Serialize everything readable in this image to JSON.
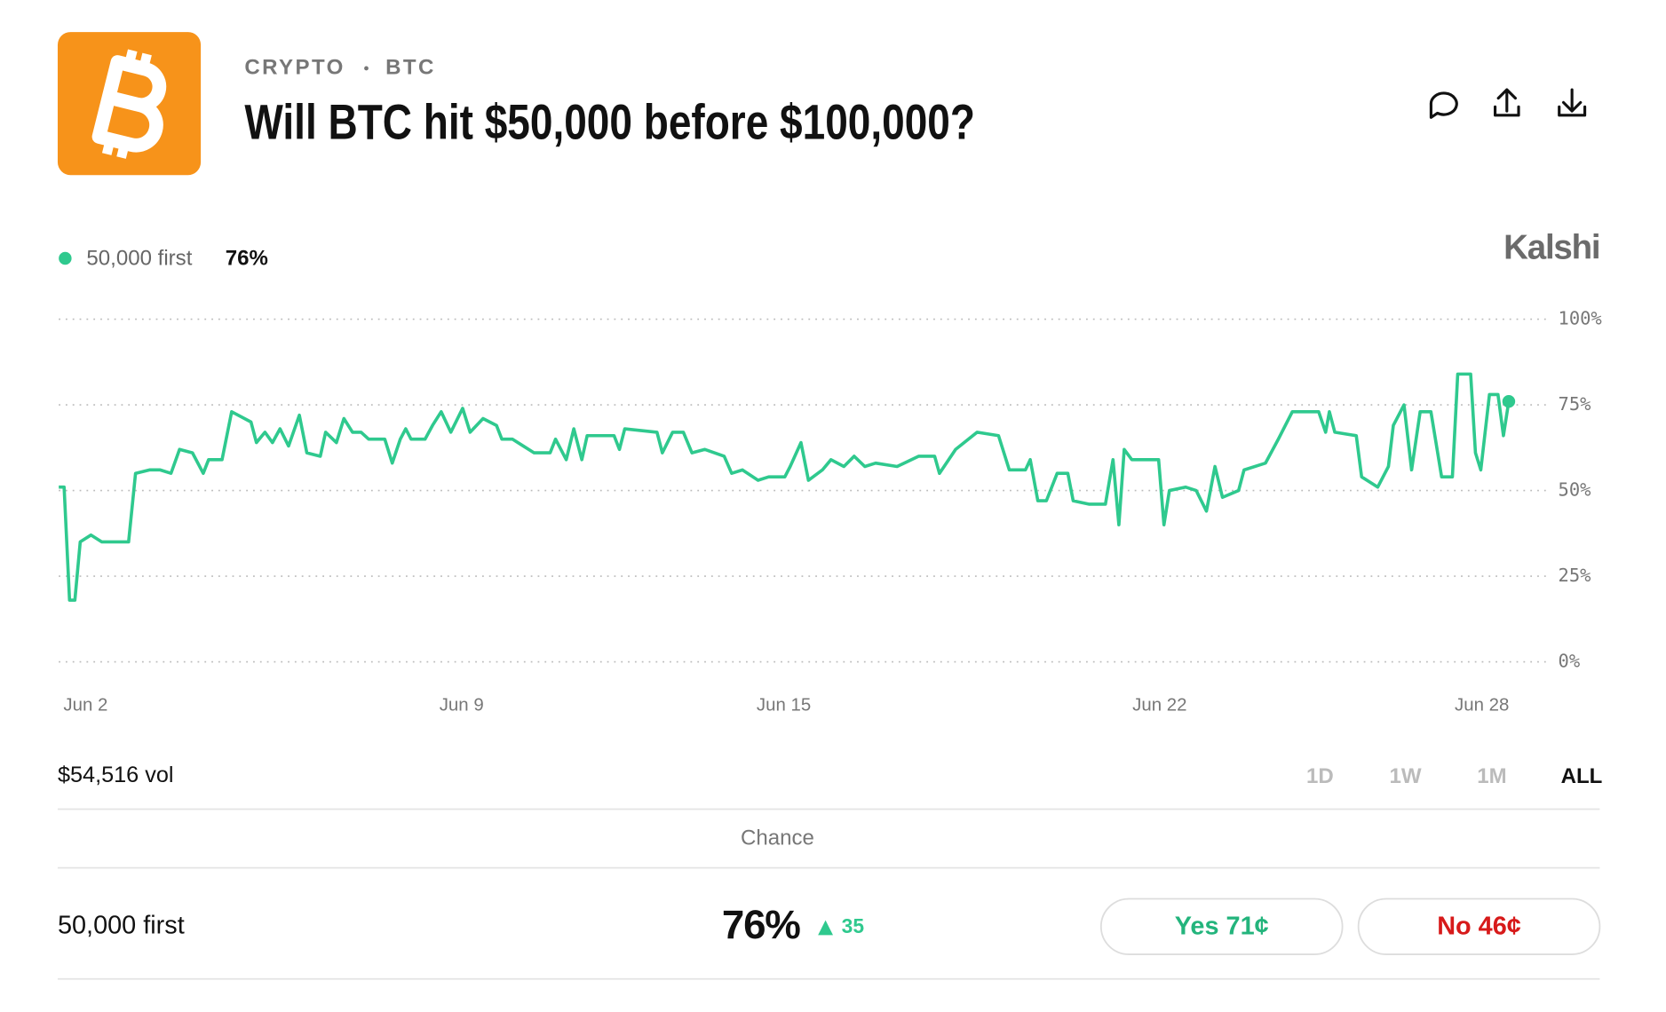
{
  "header": {
    "category": "CRYPTO",
    "ticker": "BTC",
    "title": "Will BTC hit $50,000 before $100,000?"
  },
  "brand": "Kalshi",
  "chart_data": {
    "type": "line",
    "series": [
      {
        "name": "50,000 first",
        "current": "76%",
        "color": "#2fc98e",
        "x": [
          1.5,
          1.6,
          1.7,
          1.8,
          1.9,
          2.1,
          2.3,
          2.5,
          2.8,
          2.93,
          3.19,
          3.39,
          3.59,
          3.75,
          3.99,
          4.19,
          4.29,
          4.54,
          4.72,
          5.08,
          5.18,
          5.34,
          5.48,
          5.62,
          5.78,
          5.98,
          6.12,
          6.37,
          6.47,
          6.67,
          6.81,
          6.97,
          7.13,
          7.27,
          7.57,
          7.71,
          7.86,
          7.96,
          8.06,
          8.32,
          8.46,
          8.62,
          8.8,
          9.02,
          9.16,
          9.4,
          9.65,
          9.75,
          9.95,
          10.15,
          10.35,
          10.65,
          10.75,
          10.95,
          11.09,
          11.24,
          11.34,
          11.84,
          11.94,
          12.04,
          12.64,
          12.74,
          12.93,
          13.13,
          13.29,
          13.53,
          13.89,
          14.03,
          14.23,
          14.52,
          14.72,
          15.02,
          15.12,
          15.32,
          15.46,
          15.72,
          15.88,
          16.12,
          16.31,
          16.51,
          16.71,
          17.11,
          17.51,
          17.81,
          17.9,
          18.2,
          18.6,
          19.0,
          19.2,
          19.5,
          19.59,
          19.73,
          19.89,
          20.09,
          20.29,
          20.39,
          20.69,
          20.99,
          21.13,
          21.24,
          21.34,
          21.48,
          21.98,
          22.08,
          22.18,
          22.48,
          22.68,
          22.87,
          23.03,
          23.17,
          23.47,
          23.57,
          23.97,
          24.21,
          24.47,
          24.96,
          25.09,
          25.16,
          25.26,
          25.66,
          25.76,
          26.06,
          26.26,
          26.35,
          26.55,
          26.69,
          26.85,
          27.05,
          27.25,
          27.45,
          27.55,
          27.79,
          27.88,
          27.98,
          28.14,
          28.3,
          28.4,
          28.5
        ],
        "values": [
          51,
          51,
          18,
          18,
          35,
          37,
          35,
          35,
          35,
          55,
          56,
          56,
          55,
          62,
          61,
          55,
          59,
          59,
          73,
          70,
          64,
          67,
          64,
          68,
          63,
          72,
          61,
          60,
          67,
          64,
          71,
          67,
          67,
          65,
          65,
          58,
          65,
          68,
          65,
          65,
          69,
          73,
          67,
          74,
          67,
          71,
          69,
          65,
          65,
          63,
          61,
          61,
          65,
          59,
          68,
          59,
          66,
          66,
          62,
          68,
          67,
          61,
          67,
          67,
          61,
          62,
          60,
          55,
          56,
          53,
          54,
          54,
          57,
          64,
          53,
          56,
          59,
          57,
          60,
          57,
          58,
          57,
          60,
          60,
          55,
          62,
          67,
          66,
          56,
          56,
          59,
          47,
          47,
          55,
          55,
          47,
          46,
          46,
          59,
          40,
          62,
          59,
          59,
          40,
          50,
          51,
          50,
          44,
          57,
          48,
          50,
          56,
          58,
          65,
          73,
          73,
          67,
          73,
          67,
          66,
          54,
          51,
          57,
          69,
          75,
          56,
          73,
          73,
          54,
          54,
          84,
          84,
          61,
          56,
          78,
          78,
          66,
          76
        ]
      }
    ],
    "xlim": [
      1.5,
      29.24
    ],
    "xticks": [
      {
        "value": 2,
        "label": "Jun 2"
      },
      {
        "value": 9,
        "label": "Jun 9"
      },
      {
        "value": 15,
        "label": "Jun 15"
      },
      {
        "value": 22,
        "label": "Jun 22"
      },
      {
        "value": 28,
        "label": "Jun 28"
      }
    ],
    "ylim": [
      0,
      100
    ],
    "yticks": [
      {
        "value": 0,
        "label": "0%"
      },
      {
        "value": 25,
        "label": "25%"
      },
      {
        "value": 50,
        "label": "50%"
      },
      {
        "value": 75,
        "label": "75%"
      },
      {
        "value": 100,
        "label": "100%"
      }
    ],
    "grid": true
  },
  "volume": "$54,516 vol",
  "ranges": [
    "1D",
    "1W",
    "1M",
    "ALL"
  ],
  "active_range": "ALL",
  "table": {
    "header": "Chance",
    "row": {
      "change": "35",
      "yes": "Yes 71¢",
      "no": "No 46¢"
    }
  }
}
